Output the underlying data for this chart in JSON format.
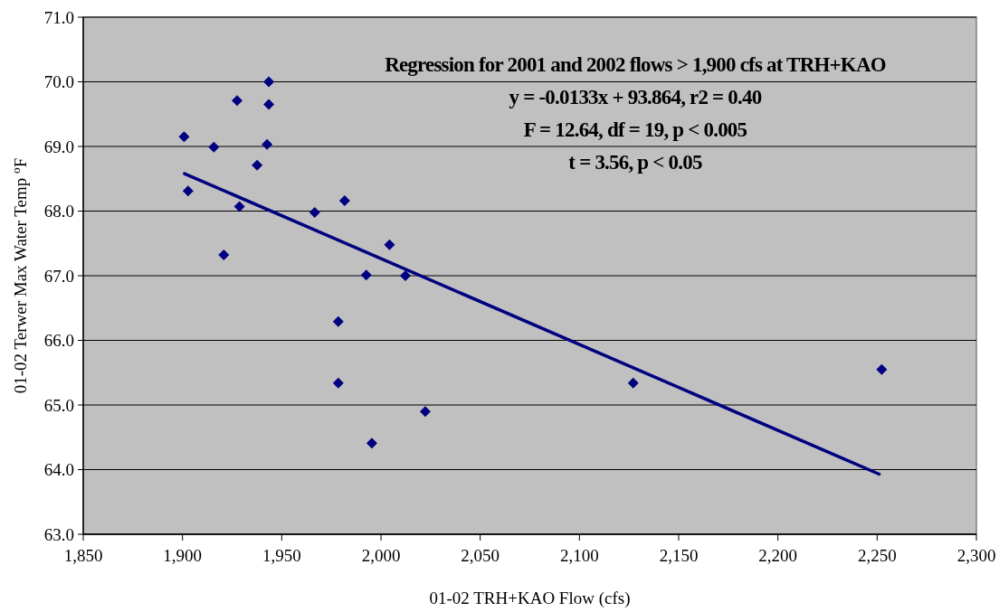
{
  "chart_data": {
    "type": "scatter",
    "xlabel": "01-02 TRH+KAO Flow (cfs)",
    "ylabel": "01-02 Terwer Max Water Temp $^{o}$F",
    "annotations": [
      "Regression for 2001 and 2002 flows > 1,900 cfs at TRH+KAO",
      "y = -0.0133x + 93.864, r2 = 0.40",
      "F = 12.64, df = 19, p < 0.005",
      "t = 3.56, p < 0.05"
    ],
    "series": [
      {
        "color": "#000080",
        "marker": "diamond",
        "x": [
          1900.8,
          1902.8,
          1915.8,
          1920.8,
          1927.5,
          1928.7,
          1937.6,
          1942.6,
          1943.5,
          1943.5,
          1966.6,
          1981.7,
          2004.3,
          1992.6,
          2012.3,
          1978.5,
          1978.5,
          1995.4,
          2022.3,
          2127.1,
          2252.3
        ],
        "values": [
          69.15,
          68.31,
          68.99,
          67.32,
          69.71,
          68.07,
          68.71,
          69.03,
          70.0,
          69.65,
          67.98,
          68.16,
          67.48,
          67.01,
          67.0,
          66.29,
          65.34,
          64.41,
          64.9,
          65.34,
          65.55
        ]
      },
      {
        "type": "line",
        "color": "#000080",
        "x": [
          1901,
          2251
        ],
        "values": [
          68.58,
          63.93
        ]
      }
    ],
    "xlim": [
      1850,
      2300
    ],
    "ylim": [
      63,
      71
    ],
    "xticks": [
      {
        "value": 1850,
        "label": "1,850"
      },
      {
        "value": 1900,
        "label": "1,900"
      },
      {
        "value": 1950,
        "label": "1,950"
      },
      {
        "value": 2000,
        "label": "2,000"
      },
      {
        "value": 2050,
        "label": "2,050"
      },
      {
        "value": 2100,
        "label": "2,100"
      },
      {
        "value": 2150,
        "label": "2,150"
      },
      {
        "value": 2200,
        "label": "2,200"
      },
      {
        "value": 2250,
        "label": "2,250"
      },
      {
        "value": 2300,
        "label": "2,300"
      }
    ],
    "yticks": [
      {
        "value": 63,
        "label": "63.0"
      },
      {
        "value": 64,
        "label": "64.0"
      },
      {
        "value": 65,
        "label": "65.0"
      },
      {
        "value": 66,
        "label": "66.0"
      },
      {
        "value": 67,
        "label": "67.0"
      },
      {
        "value": 68,
        "label": "68.0"
      },
      {
        "value": 69,
        "label": "69.0"
      },
      {
        "value": 70,
        "label": "70.0"
      },
      {
        "value": 71,
        "label": "71.0"
      }
    ],
    "grid": "y"
  }
}
